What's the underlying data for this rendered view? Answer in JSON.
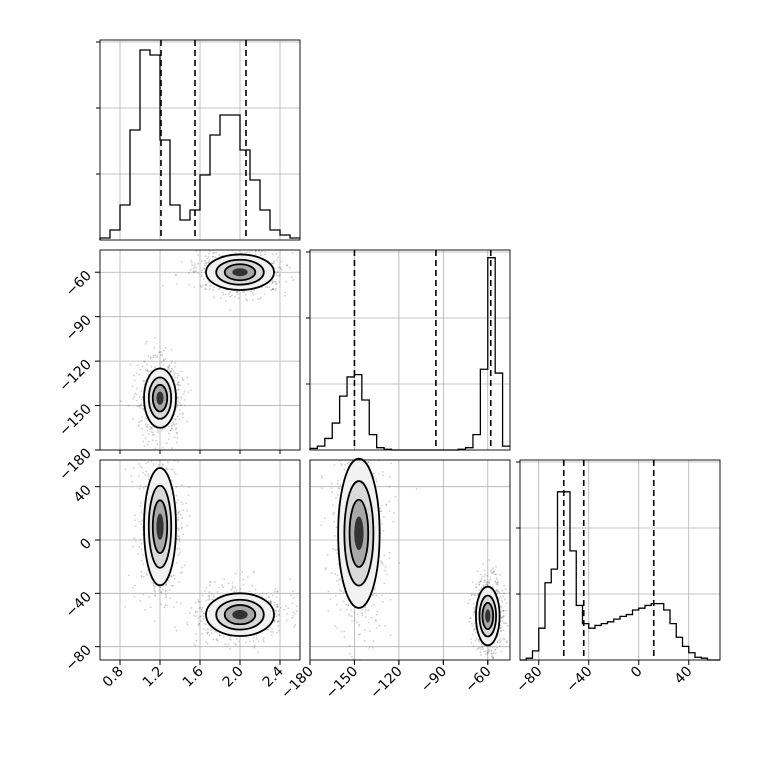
{
  "chart_data": {
    "type": "corner",
    "parameters": [
      "",
      "",
      ""
    ],
    "style": {
      "line_color": "#000000",
      "grid_color": "#b0b0b0",
      "fill_color": "#000000",
      "background": "#ffffff",
      "grid": true
    },
    "hist_1d": [
      {
        "param": 0,
        "xlim": [
          0.6,
          2.6
        ],
        "bins": [
          0.6,
          0.7,
          0.8,
          0.9,
          1.0,
          1.1,
          1.2,
          1.3,
          1.4,
          1.5,
          1.6,
          1.7,
          1.8,
          1.9,
          2.0,
          2.1,
          2.2,
          2.3,
          2.4,
          2.5,
          2.6
        ],
        "counts": [
          2,
          10,
          35,
          110,
          190,
          185,
          100,
          35,
          20,
          30,
          65,
          105,
          125,
          125,
          90,
          60,
          30,
          10,
          5,
          2
        ],
        "ylim": [
          0,
          200
        ],
        "quantiles": [
          1.21,
          1.55,
          2.06
        ]
      },
      {
        "param": 1,
        "xlim": [
          -180,
          -45
        ],
        "bins": [
          -180,
          -175,
          -170,
          -165,
          -160,
          -155,
          -150,
          -145,
          -140,
          -135,
          -130,
          -125,
          -120,
          -115,
          -110,
          -105,
          -100,
          -95,
          -90,
          -85,
          -80,
          -75,
          -70,
          -65,
          -60,
          -55,
          -50,
          -45
        ],
        "counts": [
          2,
          5,
          15,
          35,
          70,
          95,
          98,
          65,
          20,
          3,
          1,
          0,
          0,
          0,
          0,
          0,
          0,
          0,
          0,
          0,
          1,
          3,
          20,
          105,
          250,
          100,
          5
        ],
        "ylim": [
          0,
          260
        ],
        "quantiles": [
          -150,
          -95,
          -58
        ]
      },
      {
        "param": 2,
        "xlim": [
          -95,
          65
        ],
        "bins": [
          -95,
          -90,
          -85,
          -80,
          -75,
          -70,
          -65,
          -60,
          -55,
          -50,
          -45,
          -40,
          -35,
          -30,
          -25,
          -20,
          -15,
          -10,
          -5,
          0,
          5,
          10,
          15,
          20,
          25,
          30,
          35,
          40,
          45,
          50,
          55,
          60,
          65
        ],
        "counts": [
          0,
          2,
          10,
          35,
          85,
          100,
          185,
          185,
          120,
          60,
          40,
          35,
          38,
          40,
          42,
          45,
          48,
          50,
          55,
          57,
          60,
          62,
          62,
          55,
          40,
          25,
          15,
          8,
          3,
          2,
          0,
          0
        ],
        "ylim": [
          0,
          220
        ],
        "quantiles": [
          -60,
          -44,
          12
        ]
      }
    ],
    "hist_2d": [
      {
        "x_param": 0,
        "y_param": 1,
        "modes": [
          {
            "center": [
              2.0,
              -60
            ],
            "spread": [
              0.17,
              6
            ]
          },
          {
            "center": [
              1.2,
              -145
            ],
            "spread": [
              0.08,
              10
            ]
          }
        ]
      },
      {
        "x_param": 0,
        "y_param": 2,
        "modes": [
          {
            "center": [
              1.2,
              10
            ],
            "spread": [
              0.08,
              22
            ]
          },
          {
            "center": [
              2.0,
              -56
            ],
            "spread": [
              0.17,
              8
            ]
          }
        ]
      },
      {
        "x_param": 1,
        "y_param": 2,
        "modes": [
          {
            "center": [
              -147,
              5
            ],
            "spread": [
              7,
              28
            ]
          },
          {
            "center": [
              -60,
              -57
            ],
            "spread": [
              4,
              11
            ]
          }
        ]
      }
    ],
    "axes": {
      "x_ticks": [
        {
          "values": [
            0.8,
            1.2,
            1.6,
            2.0,
            2.4
          ],
          "labels": [
            "0.8",
            "1.2",
            "1.6",
            "2.0",
            "2.4"
          ]
        },
        {
          "values": [
            -180,
            -150,
            -120,
            -90,
            -60
          ],
          "labels": [
            "−180",
            "−150",
            "−120",
            "−90",
            "−60"
          ]
        },
        {
          "values": [
            -80,
            -40,
            0,
            40
          ],
          "labels": [
            "−80",
            "−40",
            "0",
            "40"
          ]
        }
      ],
      "y_ticks": [
        null,
        {
          "values": [
            -180,
            -150,
            -120,
            -90,
            -60
          ],
          "labels": [
            "−180",
            "−150",
            "−120",
            "−90",
            "−60"
          ]
        },
        {
          "values": [
            -80,
            -40,
            0,
            40
          ],
          "labels": [
            "−80",
            "−40",
            "0",
            "40"
          ]
        }
      ],
      "y_ranges": [
        null,
        [
          -180,
          -45
        ],
        [
          -90,
          60
        ]
      ]
    }
  }
}
